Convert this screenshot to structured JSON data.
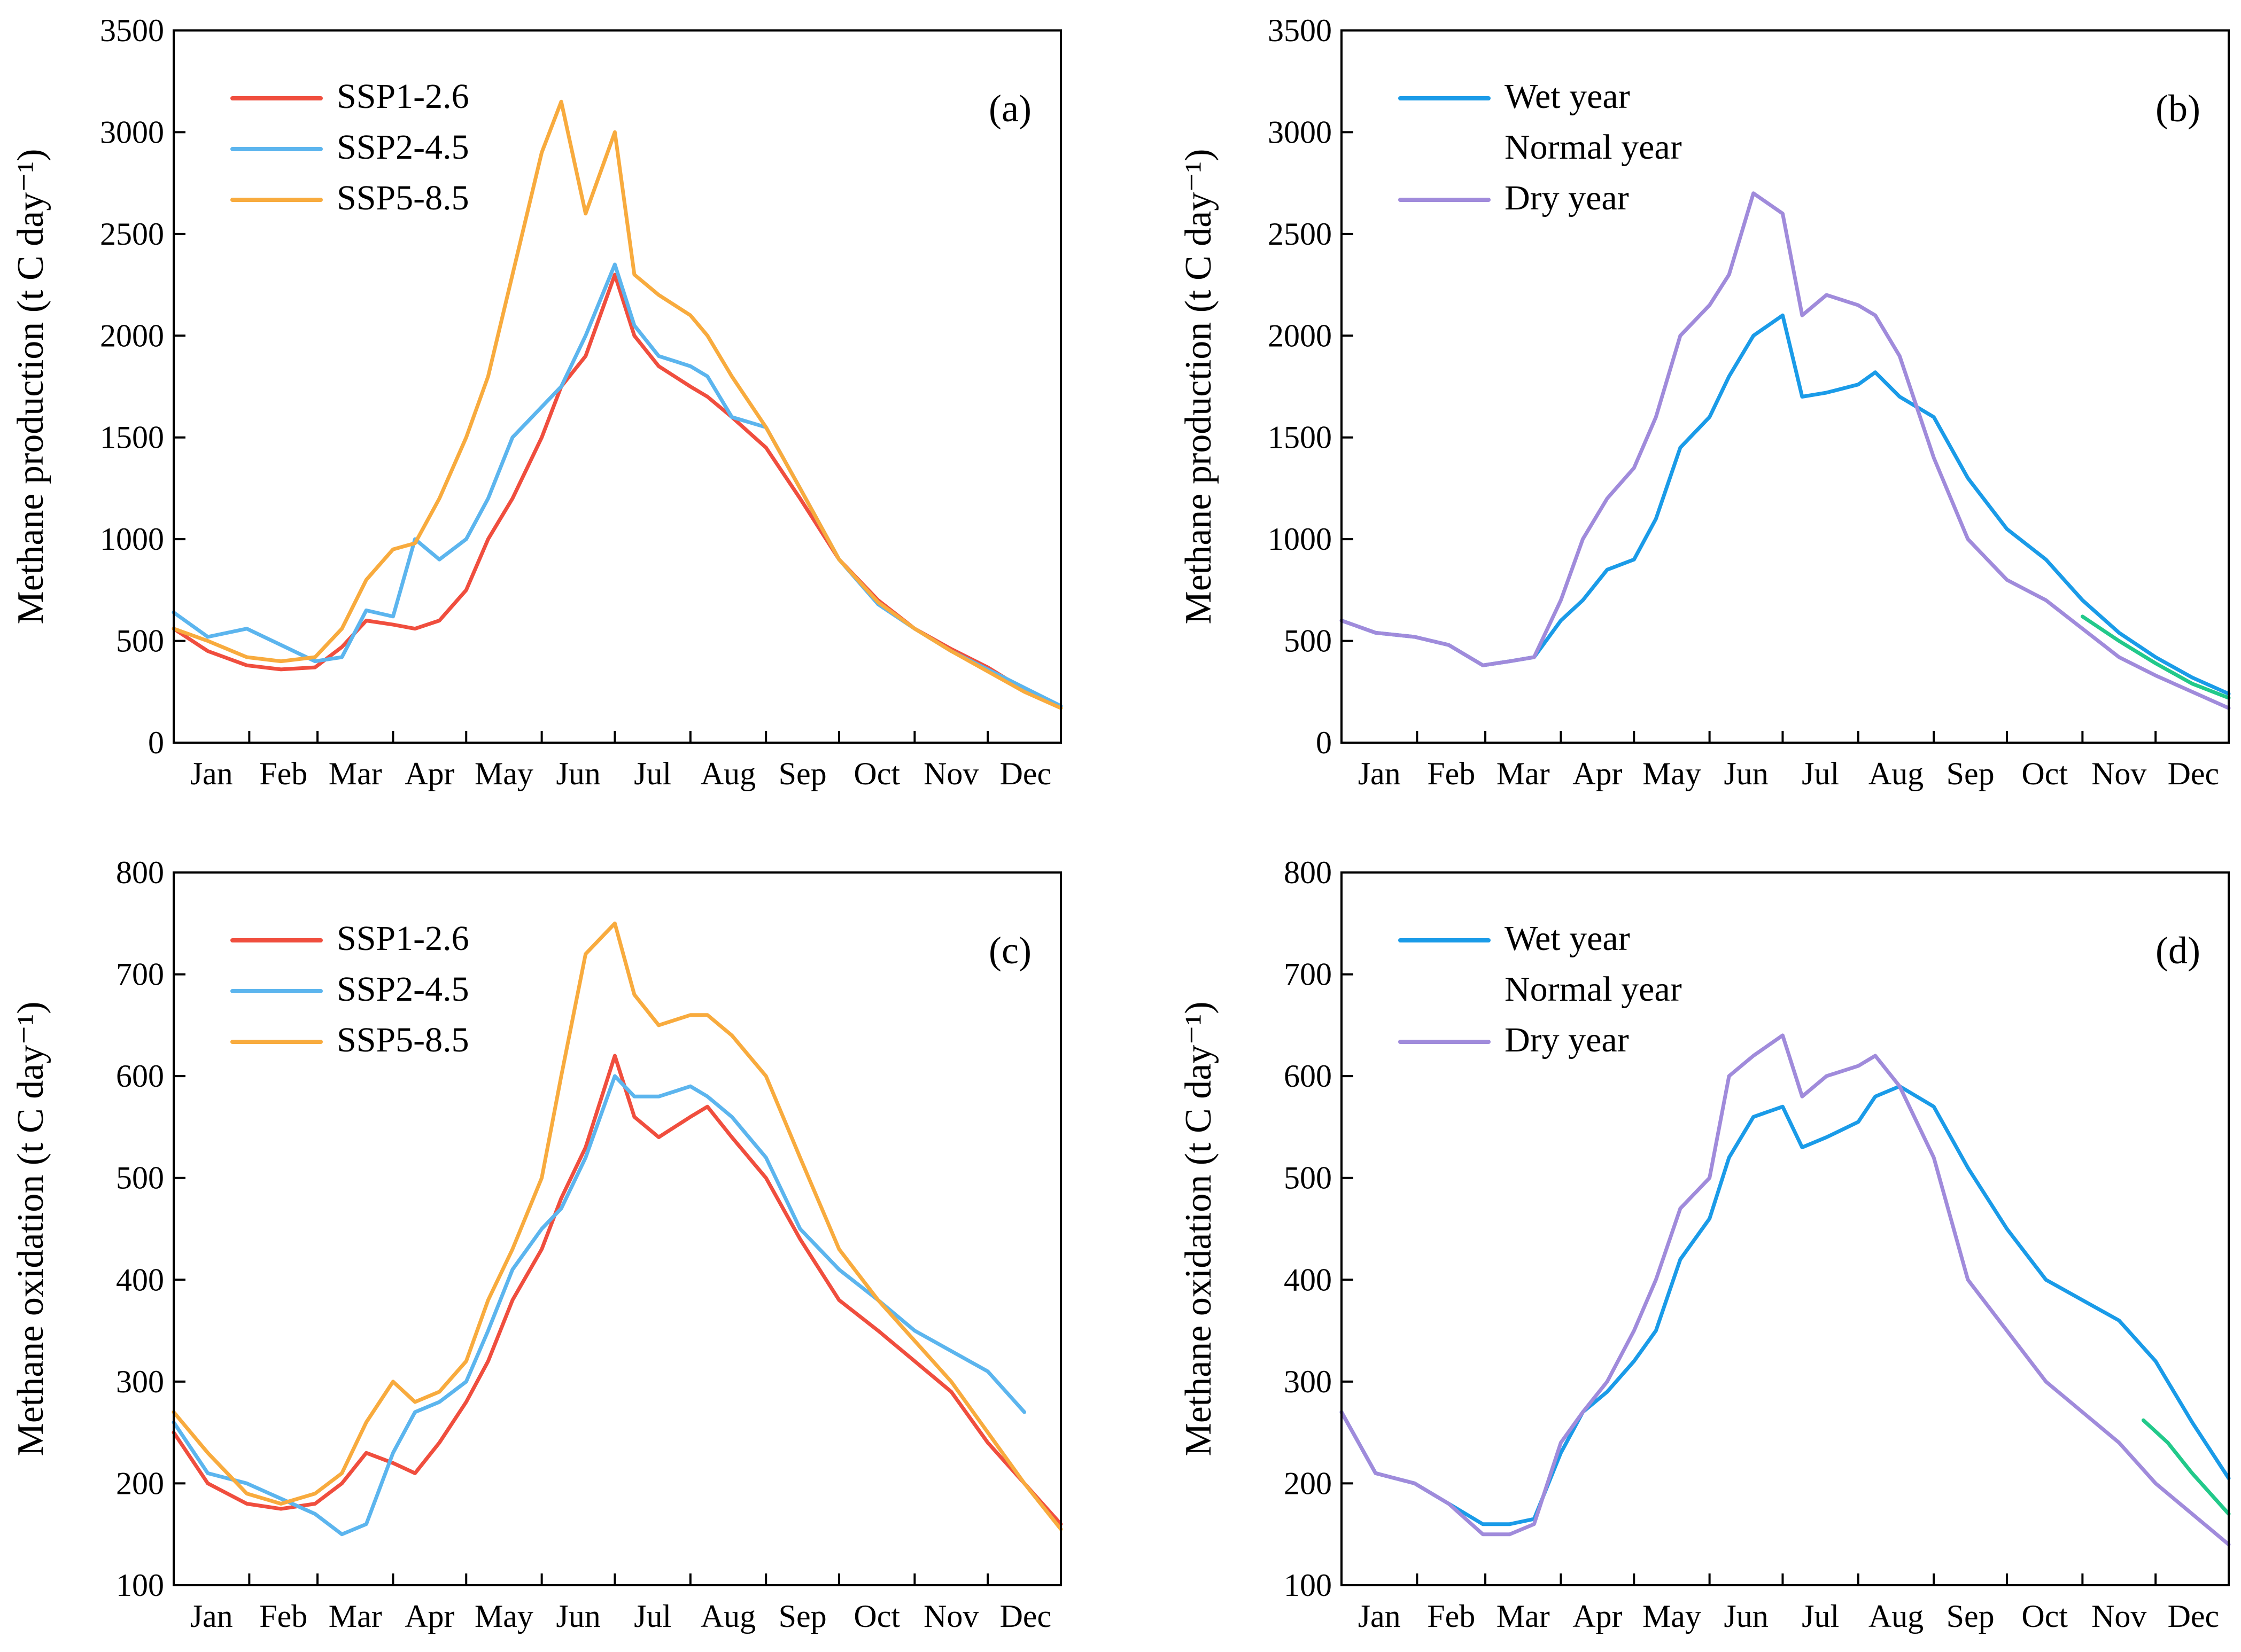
{
  "chart_data": [
    {
      "id": "a",
      "type": "line",
      "panel_label": "(a)",
      "ylabel": "Methane production (t C day⁻¹)",
      "ylim": [
        0,
        3500
      ],
      "yticks": [
        0,
        500,
        1000,
        1500,
        2000,
        2500,
        3000,
        3500
      ],
      "ytick_labels": [
        "0",
        "500",
        "1000",
        "1500",
        "2000",
        "2500",
        "3000",
        "3500"
      ],
      "x_months": [
        "Jan",
        "Feb",
        "Mar",
        "Apr",
        "May",
        "Jun",
        "Jul",
        "Aug",
        "Sep",
        "Oct",
        "Nov",
        "Dec"
      ],
      "x_range_days": [
        1,
        365
      ],
      "legend_position": "top-left",
      "series": [
        {
          "name": "SSP1-2.6",
          "color": "#f04e3e",
          "days": [
            1,
            15,
            31,
            45,
            59,
            70,
            80,
            91,
            100,
            110,
            121,
            130,
            140,
            152,
            160,
            170,
            182,
            190,
            200,
            213,
            220,
            230,
            244,
            258,
            274,
            290,
            305,
            320,
            335,
            350,
            365
          ],
          "values": [
            560,
            450,
            380,
            360,
            370,
            470,
            600,
            580,
            560,
            600,
            750,
            1000,
            1200,
            1500,
            1750,
            1900,
            2300,
            2000,
            1850,
            1750,
            1700,
            1600,
            1450,
            1200,
            900,
            700,
            560,
            460,
            370,
            260,
            180
          ]
        },
        {
          "name": "SSP2-4.5",
          "color": "#5cb5ee",
          "days": [
            1,
            15,
            31,
            45,
            59,
            70,
            80,
            91,
            100,
            110,
            121,
            130,
            140,
            152,
            160,
            170,
            182,
            190,
            200,
            213,
            220,
            230,
            244,
            258,
            274,
            290,
            305,
            320,
            335,
            350,
            365
          ],
          "values": [
            640,
            520,
            560,
            480,
            400,
            420,
            650,
            620,
            1000,
            900,
            1000,
            1200,
            1500,
            1650,
            1750,
            2000,
            2350,
            2050,
            1900,
            1850,
            1800,
            1600,
            1550,
            1250,
            900,
            680,
            560,
            450,
            360,
            270,
            180
          ]
        },
        {
          "name": "SSP5-8.5",
          "color": "#f8ab3e",
          "days": [
            1,
            15,
            31,
            45,
            59,
            70,
            80,
            91,
            100,
            110,
            121,
            130,
            140,
            152,
            160,
            170,
            182,
            190,
            200,
            213,
            220,
            230,
            244,
            258,
            274,
            290,
            305,
            320,
            335,
            350,
            365
          ],
          "values": [
            560,
            500,
            420,
            400,
            420,
            560,
            800,
            950,
            980,
            1200,
            1500,
            1800,
            2300,
            2900,
            3150,
            2600,
            3000,
            2300,
            2200,
            2100,
            2000,
            1800,
            1550,
            1250,
            900,
            690,
            560,
            450,
            350,
            250,
            170
          ]
        }
      ]
    },
    {
      "id": "b",
      "type": "line",
      "panel_label": "(b)",
      "ylabel": "Methane production (t C day⁻¹)",
      "ylim": [
        0,
        3500
      ],
      "yticks": [
        0,
        500,
        1000,
        1500,
        2000,
        2500,
        3000,
        3500
      ],
      "ytick_labels": [
        "0",
        "500",
        "1000",
        "1500",
        "2000",
        "2500",
        "3000",
        "3500"
      ],
      "x_months": [
        "Jan",
        "Feb",
        "Mar",
        "Apr",
        "May",
        "Jun",
        "Jul",
        "Aug",
        "Sep",
        "Oct",
        "Nov",
        "Dec"
      ],
      "x_range_days": [
        1,
        365
      ],
      "legend_position": "top-left",
      "series": [
        {
          "name": "Wet year",
          "color": "#1a9be8",
          "days": [
            1,
            15,
            31,
            45,
            59,
            70,
            80,
            91,
            100,
            110,
            121,
            130,
            140,
            152,
            160,
            170,
            182,
            190,
            200,
            213,
            220,
            230,
            244,
            258,
            274,
            290,
            305,
            320,
            335,
            350,
            365
          ],
          "values": [
            600,
            540,
            520,
            480,
            380,
            400,
            420,
            600,
            700,
            850,
            900,
            1100,
            1450,
            1600,
            1800,
            2000,
            2100,
            1700,
            1720,
            1760,
            1820,
            1700,
            1600,
            1300,
            1050,
            900,
            700,
            540,
            420,
            320,
            240
          ]
        },
        {
          "name": "Normal year",
          "color": "#22c98a",
          "days": [
            305,
            320,
            335,
            350,
            365
          ],
          "values": [
            620,
            500,
            390,
            290,
            220
          ]
        },
        {
          "name": "Dry year",
          "color": "#a08bdb",
          "days": [
            1,
            15,
            31,
            45,
            59,
            70,
            80,
            91,
            100,
            110,
            121,
            130,
            140,
            152,
            160,
            170,
            182,
            190,
            200,
            213,
            220,
            230,
            244,
            258,
            274,
            290,
            305,
            320,
            335,
            350,
            365
          ],
          "values": [
            600,
            540,
            520,
            480,
            380,
            400,
            420,
            700,
            1000,
            1200,
            1350,
            1600,
            2000,
            2150,
            2300,
            2700,
            2600,
            2100,
            2200,
            2150,
            2100,
            1900,
            1400,
            1000,
            800,
            700,
            560,
            420,
            330,
            250,
            170
          ]
        }
      ]
    },
    {
      "id": "c",
      "type": "line",
      "panel_label": "(c)",
      "ylabel": "Methane oxidation (t C day⁻¹)",
      "ylim": [
        100,
        800
      ],
      "yticks": [
        100,
        200,
        300,
        400,
        500,
        600,
        700,
        800
      ],
      "ytick_labels": [
        "100",
        "200",
        "300",
        "400",
        "500",
        "600",
        "700",
        "800"
      ],
      "x_months": [
        "Jan",
        "Feb",
        "Mar",
        "Apr",
        "May",
        "Jun",
        "Jul",
        "Aug",
        "Sep",
        "Oct",
        "Nov",
        "Dec"
      ],
      "x_range_days": [
        1,
        365
      ],
      "legend_position": "top-left",
      "series": [
        {
          "name": "SSP1-2.6",
          "color": "#f04e3e",
          "days": [
            1,
            15,
            31,
            45,
            59,
            70,
            80,
            91,
            100,
            110,
            121,
            130,
            140,
            152,
            160,
            170,
            182,
            190,
            200,
            213,
            220,
            230,
            244,
            258,
            274,
            290,
            305,
            320,
            335,
            350,
            365
          ],
          "values": [
            250,
            200,
            180,
            175,
            180,
            200,
            230,
            220,
            210,
            240,
            280,
            320,
            380,
            430,
            480,
            530,
            620,
            560,
            540,
            560,
            570,
            540,
            500,
            440,
            380,
            350,
            320,
            290,
            240,
            200,
            160
          ]
        },
        {
          "name": "SSP2-4.5",
          "color": "#5cb5ee",
          "days": [
            1,
            15,
            31,
            45,
            59,
            70,
            80,
            91,
            100,
            110,
            121,
            130,
            140,
            152,
            160,
            170,
            182,
            190,
            200,
            213,
            220,
            230,
            244,
            258,
            274,
            290,
            305,
            320,
            335,
            350
          ],
          "values": [
            260,
            210,
            200,
            185,
            170,
            150,
            160,
            230,
            270,
            280,
            300,
            350,
            410,
            450,
            470,
            520,
            600,
            580,
            580,
            590,
            580,
            560,
            520,
            450,
            410,
            380,
            350,
            330,
            310,
            270
          ]
        },
        {
          "name": "SSP5-8.5",
          "color": "#f8ab3e",
          "days": [
            1,
            15,
            31,
            45,
            59,
            70,
            80,
            91,
            100,
            110,
            121,
            130,
            140,
            152,
            160,
            170,
            182,
            190,
            200,
            213,
            220,
            230,
            244,
            258,
            274,
            290,
            305,
            320,
            335,
            350,
            365
          ],
          "values": [
            270,
            230,
            190,
            180,
            190,
            210,
            260,
            300,
            280,
            290,
            320,
            380,
            430,
            500,
            600,
            720,
            750,
            680,
            650,
            660,
            660,
            640,
            600,
            520,
            430,
            380,
            340,
            300,
            250,
            200,
            155
          ]
        }
      ]
    },
    {
      "id": "d",
      "type": "line",
      "panel_label": "(d)",
      "ylabel": "Methane oxidation (t C day⁻¹)",
      "ylim": [
        100,
        800
      ],
      "yticks": [
        100,
        200,
        300,
        400,
        500,
        600,
        700,
        800
      ],
      "ytick_labels": [
        "100",
        "200",
        "300",
        "400",
        "500",
        "600",
        "700",
        "800"
      ],
      "x_months": [
        "Jan",
        "Feb",
        "Mar",
        "Apr",
        "May",
        "Jun",
        "Jul",
        "Aug",
        "Sep",
        "Oct",
        "Nov",
        "Dec"
      ],
      "x_range_days": [
        1,
        365
      ],
      "legend_position": "top-left",
      "series": [
        {
          "name": "Wet year",
          "color": "#1a9be8",
          "days": [
            1,
            15,
            31,
            45,
            59,
            70,
            80,
            91,
            100,
            110,
            121,
            130,
            140,
            152,
            160,
            170,
            182,
            190,
            200,
            213,
            220,
            230,
            244,
            258,
            274,
            290,
            305,
            320,
            335,
            350,
            365
          ],
          "values": [
            270,
            210,
            200,
            180,
            160,
            160,
            165,
            230,
            270,
            290,
            320,
            350,
            420,
            460,
            520,
            560,
            570,
            530,
            540,
            555,
            580,
            590,
            570,
            510,
            450,
            400,
            380,
            360,
            320,
            260,
            205
          ]
        },
        {
          "name": "Normal year",
          "color": "#22c98a",
          "days": [
            330,
            340,
            350,
            365
          ],
          "values": [
            262,
            240,
            210,
            170
          ]
        },
        {
          "name": "Dry year",
          "color": "#a08bdb",
          "days": [
            1,
            15,
            31,
            45,
            59,
            70,
            80,
            91,
            100,
            110,
            121,
            130,
            140,
            152,
            160,
            170,
            182,
            190,
            200,
            213,
            220,
            230,
            244,
            258,
            274,
            290,
            305,
            320,
            335,
            350,
            365
          ],
          "values": [
            270,
            210,
            200,
            180,
            150,
            150,
            160,
            240,
            270,
            300,
            350,
            400,
            470,
            500,
            600,
            620,
            640,
            580,
            600,
            610,
            620,
            590,
            520,
            400,
            350,
            300,
            270,
            240,
            200,
            170,
            140
          ]
        }
      ]
    }
  ]
}
